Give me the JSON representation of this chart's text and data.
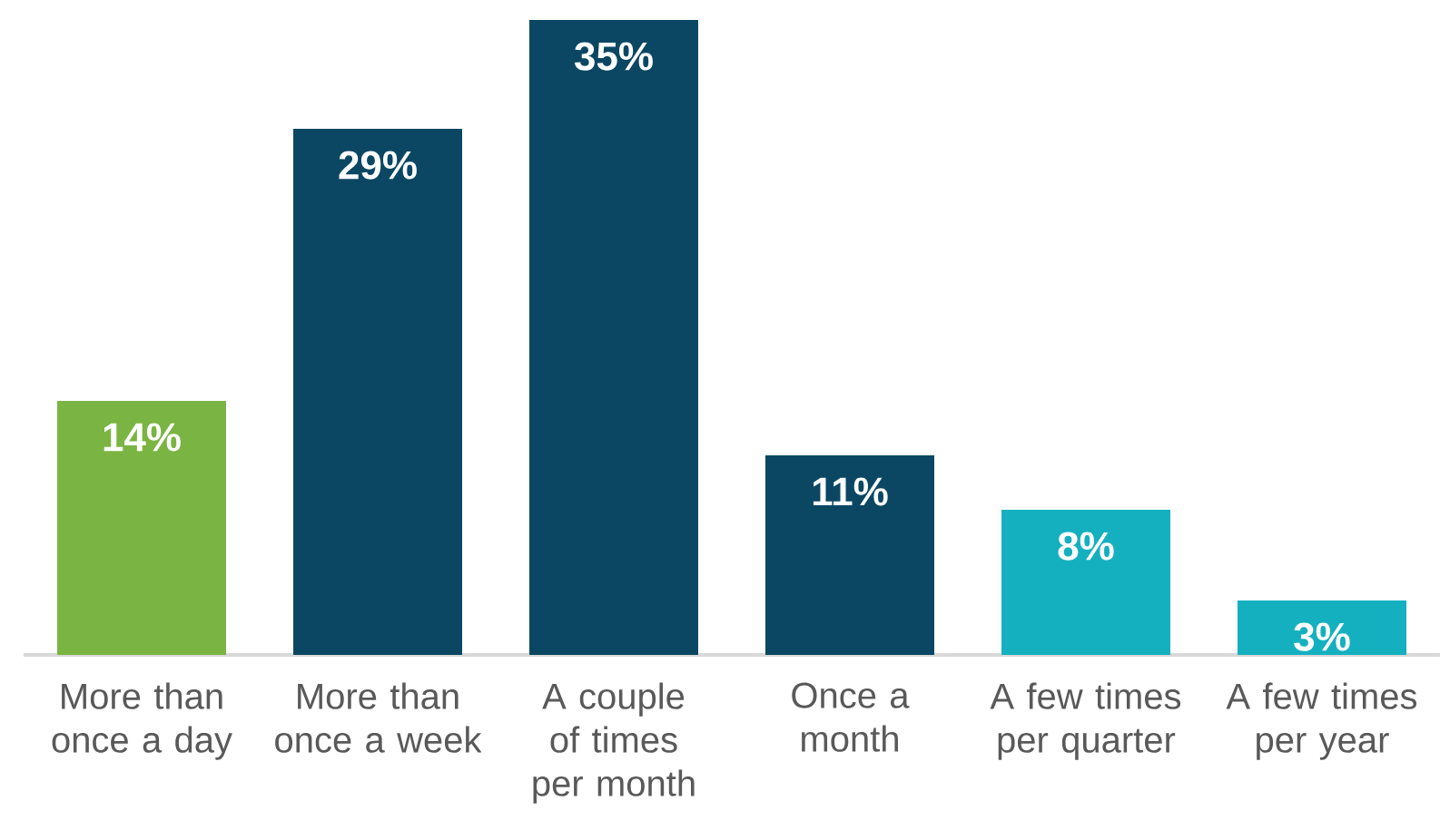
{
  "chart_data": {
    "type": "bar",
    "categories": [
      "More than once a day",
      "More than once a week",
      "A couple of times per month",
      "Once a month",
      "A few times per quarter",
      "A few times per year"
    ],
    "values": [
      14,
      29,
      35,
      11,
      8,
      3
    ],
    "colors": [
      "#7ab442",
      "#0b4762",
      "#0b4762",
      "#0b4762",
      "#15b0c0",
      "#15b0c0"
    ],
    "value_labels": [
      "14%",
      "29%",
      "35%",
      "11%",
      "8%",
      "3%"
    ],
    "ylim": [
      0,
      35
    ]
  }
}
